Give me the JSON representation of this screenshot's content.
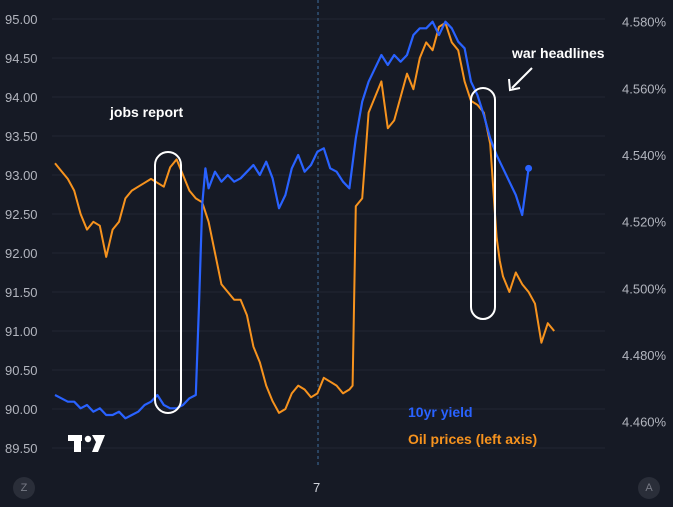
{
  "chart_data": {
    "type": "line",
    "left_axis": {
      "ticks": [
        "95.00",
        "94.50",
        "94.00",
        "93.50",
        "93.00",
        "92.50",
        "92.00",
        "91.50",
        "91.00",
        "90.50",
        "90.00",
        "89.50"
      ],
      "range": [
        89.5,
        95.0
      ]
    },
    "right_axis": {
      "ticks": [
        "4.580%",
        "4.560%",
        "4.540%",
        "4.520%",
        "4.500%",
        "4.480%",
        "4.460%"
      ],
      "range": [
        4.456,
        4.582
      ]
    },
    "x_tick": "7",
    "annotations": {
      "jobs": "jobs report",
      "war": "war headlines"
    },
    "legend": {
      "yield": "10yr yield",
      "oil": "Oil prices (left axis)"
    },
    "colors": {
      "yield": "#2962ff",
      "oil": "#f7931e"
    },
    "series": [
      {
        "name": "10yr yield",
        "axis": "right",
        "points": [
          [
            0,
            4.468
          ],
          [
            2,
            4.467
          ],
          [
            4,
            4.466
          ],
          [
            6,
            4.466
          ],
          [
            8,
            4.464
          ],
          [
            10,
            4.465
          ],
          [
            12,
            4.463
          ],
          [
            14,
            4.464
          ],
          [
            16,
            4.462
          ],
          [
            18,
            4.462
          ],
          [
            20,
            4.463
          ],
          [
            22,
            4.461
          ],
          [
            24,
            4.462
          ],
          [
            26,
            4.463
          ],
          [
            28,
            4.465
          ],
          [
            30,
            4.466
          ],
          [
            32,
            4.468
          ],
          [
            34,
            4.465
          ],
          [
            36,
            4.464
          ],
          [
            38,
            4.464
          ],
          [
            40,
            4.465
          ],
          [
            42,
            4.467
          ],
          [
            44,
            4.468
          ],
          [
            45,
            4.495
          ],
          [
            46,
            4.525
          ],
          [
            47,
            4.536
          ],
          [
            48,
            4.53
          ],
          [
            50,
            4.535
          ],
          [
            52,
            4.532
          ],
          [
            54,
            4.534
          ],
          [
            56,
            4.532
          ],
          [
            58,
            4.533
          ],
          [
            60,
            4.535
          ],
          [
            62,
            4.537
          ],
          [
            64,
            4.534
          ],
          [
            66,
            4.538
          ],
          [
            68,
            4.533
          ],
          [
            70,
            4.524
          ],
          [
            72,
            4.528
          ],
          [
            74,
            4.536
          ],
          [
            76,
            4.54
          ],
          [
            78,
            4.535
          ],
          [
            80,
            4.537
          ],
          [
            82,
            4.541
          ],
          [
            84,
            4.542
          ],
          [
            86,
            4.536
          ],
          [
            88,
            4.535
          ],
          [
            90,
            4.532
          ],
          [
            92,
            4.53
          ],
          [
            94,
            4.545
          ],
          [
            96,
            4.556
          ],
          [
            98,
            4.562
          ],
          [
            100,
            4.566
          ],
          [
            102,
            4.57
          ],
          [
            104,
            4.567
          ],
          [
            106,
            4.57
          ],
          [
            108,
            4.568
          ],
          [
            110,
            4.57
          ],
          [
            112,
            4.576
          ],
          [
            114,
            4.578
          ],
          [
            116,
            4.578
          ],
          [
            118,
            4.58
          ],
          [
            120,
            4.576
          ],
          [
            122,
            4.58
          ],
          [
            124,
            4.578
          ],
          [
            126,
            4.574
          ],
          [
            128,
            4.572
          ],
          [
            130,
            4.562
          ],
          [
            132,
            4.558
          ],
          [
            134,
            4.552
          ],
          [
            136,
            4.545
          ],
          [
            138,
            4.54
          ],
          [
            140,
            4.536
          ],
          [
            142,
            4.532
          ],
          [
            144,
            4.528
          ],
          [
            146,
            4.522
          ],
          [
            148,
            4.536
          ]
        ]
      },
      {
        "name": "Oil prices (left axis)",
        "axis": "left",
        "points": [
          [
            0,
            93.15
          ],
          [
            2,
            93.05
          ],
          [
            4,
            92.95
          ],
          [
            6,
            92.8
          ],
          [
            8,
            92.5
          ],
          [
            10,
            92.3
          ],
          [
            12,
            92.4
          ],
          [
            14,
            92.35
          ],
          [
            16,
            91.95
          ],
          [
            18,
            92.3
          ],
          [
            20,
            92.4
          ],
          [
            22,
            92.7
          ],
          [
            24,
            92.8
          ],
          [
            26,
            92.85
          ],
          [
            28,
            92.9
          ],
          [
            30,
            92.95
          ],
          [
            32,
            92.9
          ],
          [
            34,
            92.85
          ],
          [
            36,
            93.1
          ],
          [
            38,
            93.2
          ],
          [
            40,
            93.0
          ],
          [
            42,
            92.8
          ],
          [
            44,
            92.7
          ],
          [
            46,
            92.65
          ],
          [
            48,
            92.4
          ],
          [
            50,
            92.0
          ],
          [
            52,
            91.6
          ],
          [
            54,
            91.5
          ],
          [
            56,
            91.4
          ],
          [
            58,
            91.4
          ],
          [
            60,
            91.2
          ],
          [
            62,
            90.8
          ],
          [
            64,
            90.6
          ],
          [
            66,
            90.3
          ],
          [
            68,
            90.1
          ],
          [
            70,
            89.95
          ],
          [
            72,
            90.0
          ],
          [
            74,
            90.2
          ],
          [
            76,
            90.3
          ],
          [
            78,
            90.25
          ],
          [
            80,
            90.15
          ],
          [
            82,
            90.2
          ],
          [
            84,
            90.4
          ],
          [
            86,
            90.35
          ],
          [
            88,
            90.3
          ],
          [
            90,
            90.2
          ],
          [
            92,
            90.25
          ],
          [
            93,
            90.3
          ],
          [
            94,
            92.6
          ],
          [
            96,
            92.7
          ],
          [
            98,
            93.8
          ],
          [
            100,
            94.0
          ],
          [
            102,
            94.2
          ],
          [
            104,
            93.6
          ],
          [
            106,
            93.7
          ],
          [
            108,
            94.0
          ],
          [
            110,
            94.3
          ],
          [
            112,
            94.1
          ],
          [
            114,
            94.5
          ],
          [
            116,
            94.7
          ],
          [
            118,
            94.6
          ],
          [
            120,
            94.9
          ],
          [
            122,
            94.95
          ],
          [
            124,
            94.7
          ],
          [
            126,
            94.6
          ],
          [
            128,
            94.2
          ],
          [
            130,
            93.95
          ],
          [
            132,
            93.9
          ],
          [
            134,
            93.8
          ],
          [
            136,
            93.4
          ],
          [
            138,
            92.2
          ],
          [
            139,
            91.9
          ],
          [
            140,
            91.7
          ],
          [
            142,
            91.5
          ],
          [
            144,
            91.75
          ],
          [
            146,
            91.6
          ],
          [
            148,
            91.5
          ],
          [
            150,
            91.35
          ],
          [
            152,
            90.85
          ],
          [
            154,
            91.1
          ],
          [
            156,
            91.0
          ]
        ]
      }
    ]
  }
}
